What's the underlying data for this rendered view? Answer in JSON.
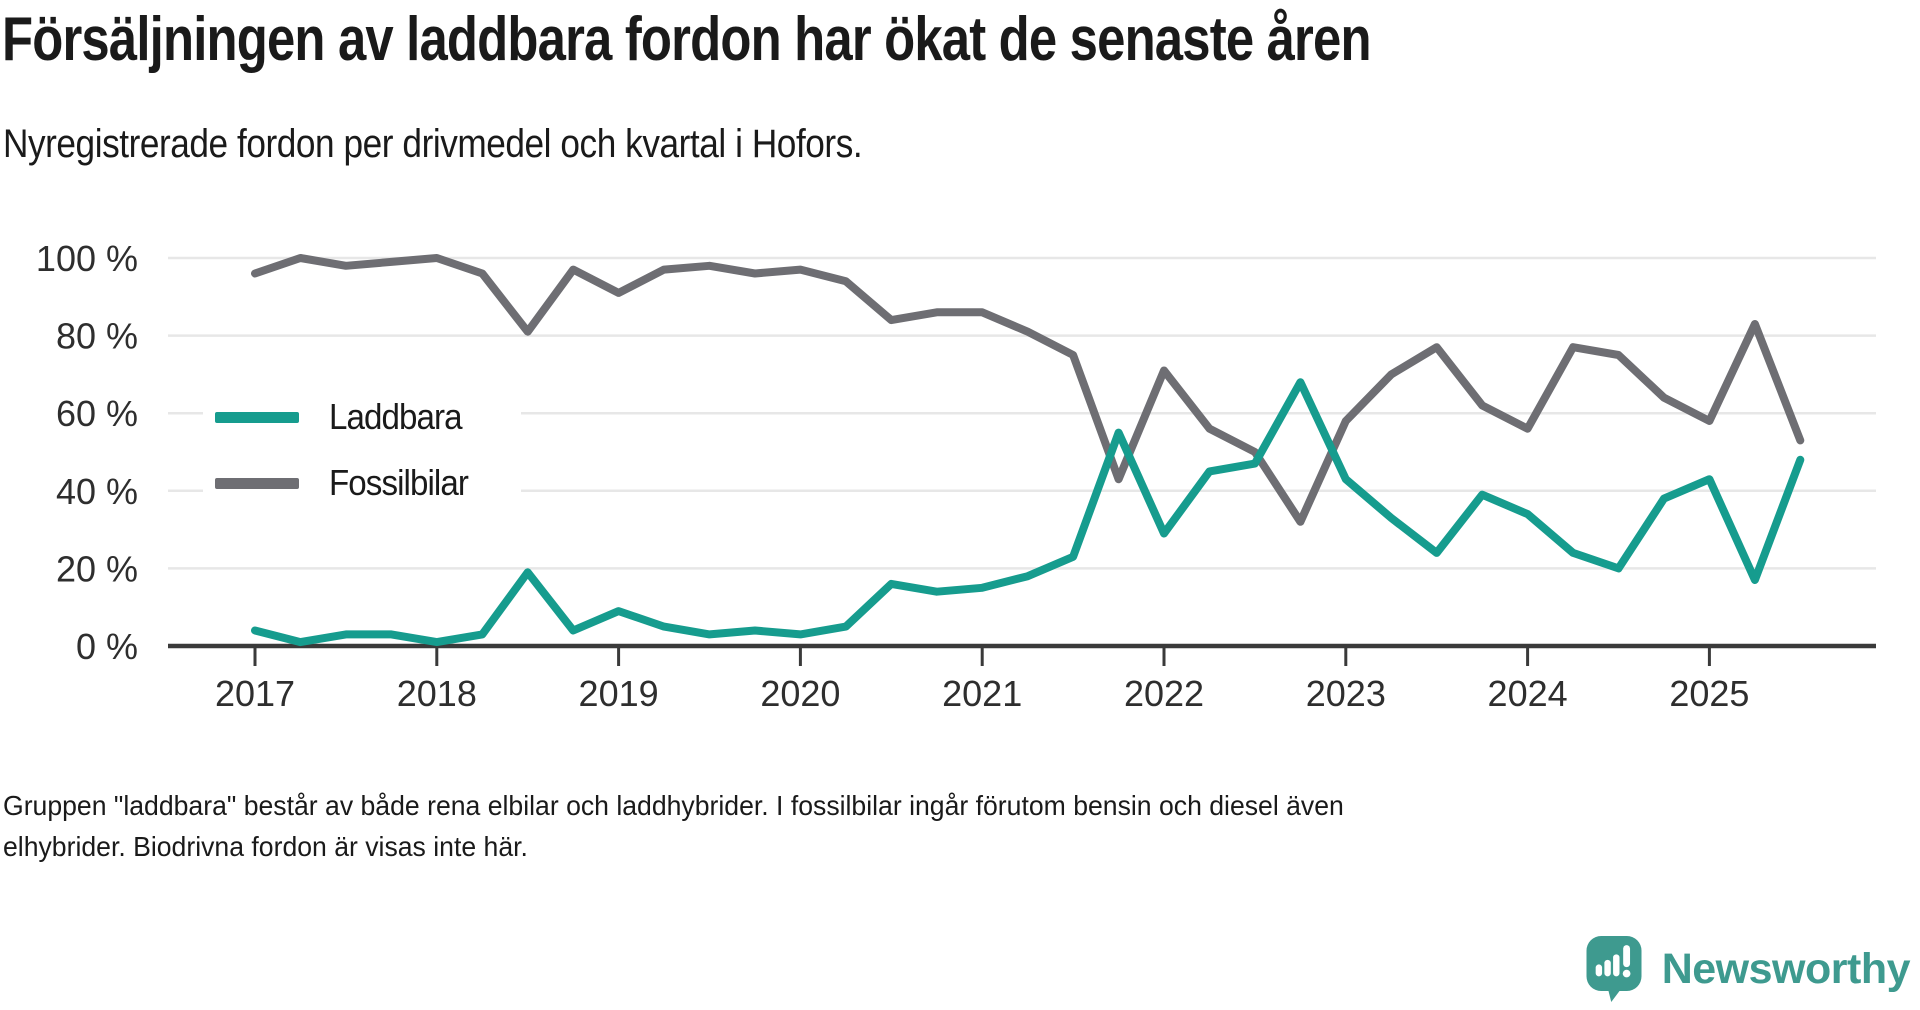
{
  "title": "Försäljningen av laddbara fordon har ökat de senaste åren",
  "subtitle": "Nyregistrerade fordon per drivmedel och kvartal i Hofors.",
  "footnote": {
    "line1": "Gruppen \"laddbara\" består av både rena elbilar och laddhybrider. I fossilbilar ingår förutom bensin och diesel även",
    "line2": "elhybrider. Biodrivna fordon är visas inte här."
  },
  "brand": {
    "name": "Newsworthy",
    "color": "#3e9a8f",
    "icon": "speech-bubble-bar-chart-icon"
  },
  "colors": {
    "background": "#ffffff",
    "title_text": "#1a1a1a",
    "axis_line": "#3a3a3a",
    "gridline": "#e7e7e7",
    "tick_text": "#2e2e2e",
    "laddbara_teal": "#169c8e",
    "fossil_gray": "#6e6e73"
  },
  "chart_data": {
    "type": "line",
    "title": "Försäljningen av laddbara fordon har ökat de senaste åren",
    "subtitle": "Nyregistrerade fordon per drivmedel och kvartal i Hofors.",
    "unit": "%",
    "frequency": "quarterly",
    "x_start": "2017-Q1",
    "x_end": "2025-Q3",
    "x_tick_labels": [
      "2017",
      "2018",
      "2019",
      "2020",
      "2021",
      "2022",
      "2023",
      "2024",
      "2025"
    ],
    "yticks": [
      "0 %",
      "20 %",
      "40 %",
      "60 %",
      "80 %",
      "100 %"
    ],
    "ylim": [
      0,
      100
    ],
    "grid": "horizontal-only",
    "legend_position": "inside-left",
    "series": [
      {
        "name": "Laddbara",
        "color": "#169c8e",
        "values": [
          4,
          1,
          3,
          3,
          1,
          3,
          19,
          4,
          9,
          5,
          3,
          4,
          3,
          5,
          16,
          14,
          15,
          18,
          23,
          55,
          29,
          45,
          47,
          68,
          43,
          33,
          24,
          39,
          34,
          24,
          20,
          38,
          43,
          17,
          48
        ]
      },
      {
        "name": "Fossilbilar",
        "color": "#6e6e73",
        "values": [
          96,
          100,
          98,
          99,
          100,
          96,
          81,
          97,
          91,
          97,
          98,
          96,
          97,
          94,
          84,
          86,
          86,
          81,
          75,
          43,
          71,
          56,
          50,
          32,
          58,
          70,
          77,
          62,
          56,
          77,
          75,
          64,
          58,
          83,
          53
        ]
      }
    ]
  }
}
